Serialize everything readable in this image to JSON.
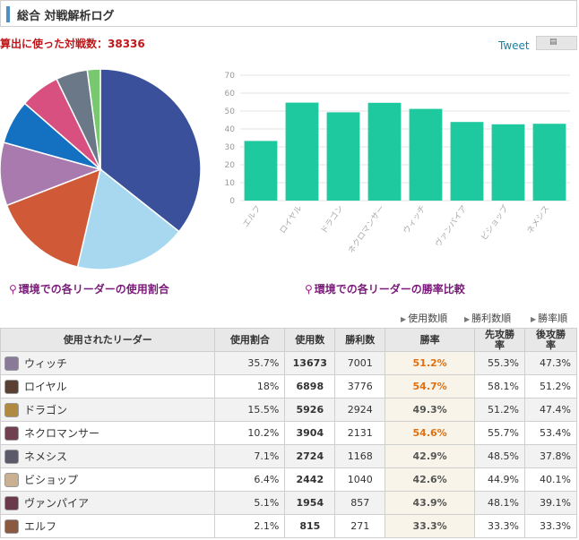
{
  "header": {
    "title": "総合 対戦解析ログ"
  },
  "summary": "算出に使った対戦数：38336",
  "tweet": {
    "label": "Tweet"
  },
  "colors": {
    "bar_fill": "#1ec9a0",
    "rate_high": "#e07010",
    "caption": "#7a1a7a"
  },
  "captions": {
    "pie": "環境での各リーダーの使用割合",
    "bar": "環境での各リーダーの勝率比較"
  },
  "sort": {
    "by_count": "使用数順",
    "by_wins": "勝利数順",
    "by_rate": "勝率順"
  },
  "table": {
    "headers": {
      "leader": "使用されたリーダー",
      "share": "使用割合",
      "count": "使用数",
      "wins": "勝利数",
      "rate": "勝率",
      "first": "先攻勝\n率",
      "second": "後攻勝\n率"
    },
    "rows": [
      {
        "name": "ウィッチ",
        "share": "35.7%",
        "count": "13673",
        "wins": "7001",
        "rate": "51.2%",
        "first": "55.3%",
        "second": "47.3%",
        "rate_hi": true,
        "avatar": "#8a7a9a"
      },
      {
        "name": "ロイヤル",
        "share": "18%",
        "count": "6898",
        "wins": "3776",
        "rate": "54.7%",
        "first": "58.1%",
        "second": "51.2%",
        "rate_hi": true,
        "avatar": "#5a4030"
      },
      {
        "name": "ドラゴン",
        "share": "15.5%",
        "count": "5926",
        "wins": "2924",
        "rate": "49.3%",
        "first": "51.2%",
        "second": "47.4%",
        "rate_hi": false,
        "avatar": "#b08a40"
      },
      {
        "name": "ネクロマンサー",
        "share": "10.2%",
        "count": "3904",
        "wins": "2131",
        "rate": "54.6%",
        "first": "55.7%",
        "second": "53.4%",
        "rate_hi": true,
        "avatar": "#704050"
      },
      {
        "name": "ネメシス",
        "share": "7.1%",
        "count": "2724",
        "wins": "1168",
        "rate": "42.9%",
        "first": "48.5%",
        "second": "37.8%",
        "rate_hi": false,
        "avatar": "#5a5a6a"
      },
      {
        "name": "ビショップ",
        "share": "6.4%",
        "count": "2442",
        "wins": "1040",
        "rate": "42.6%",
        "first": "44.9%",
        "second": "40.1%",
        "rate_hi": false,
        "avatar": "#c8b090"
      },
      {
        "name": "ヴァンパイア",
        "share": "5.1%",
        "count": "1954",
        "wins": "857",
        "rate": "43.9%",
        "first": "48.1%",
        "second": "39.1%",
        "rate_hi": false,
        "avatar": "#6a3a4a"
      },
      {
        "name": "エルフ",
        "share": "2.1%",
        "count": "815",
        "wins": "271",
        "rate": "33.3%",
        "first": "33.3%",
        "second": "33.3%",
        "rate_hi": false,
        "avatar": "#8a5a40"
      }
    ]
  },
  "chart_data": [
    {
      "type": "pie",
      "labels": [
        "ウィッチ",
        "ロイヤル",
        "ドラゴン",
        "ネクロマンサー",
        "ネメシス",
        "ビショップ",
        "ヴァンパイア",
        "エルフ"
      ],
      "values": [
        35.7,
        18,
        15.5,
        10.2,
        7.1,
        6.4,
        5.1,
        2.1
      ],
      "colors": [
        "#3a509a",
        "#a8d8f0",
        "#d05a38",
        "#a87aae",
        "#1470c0",
        "#d85080",
        "#6a7888",
        "#78c870"
      ]
    },
    {
      "type": "bar",
      "categories": [
        "エルフ",
        "ロイヤル",
        "ドラゴン",
        "ネクロマンサー",
        "ウィッチ",
        "ヴァンパイア",
        "ビショップ",
        "ネメシス"
      ],
      "values": [
        33.3,
        54.7,
        49.3,
        54.6,
        51.2,
        43.9,
        42.6,
        42.9
      ],
      "ylim": [
        0,
        70
      ],
      "yticks": [
        0,
        10,
        20,
        30,
        40,
        50,
        60,
        70
      ],
      "grid": true
    }
  ]
}
